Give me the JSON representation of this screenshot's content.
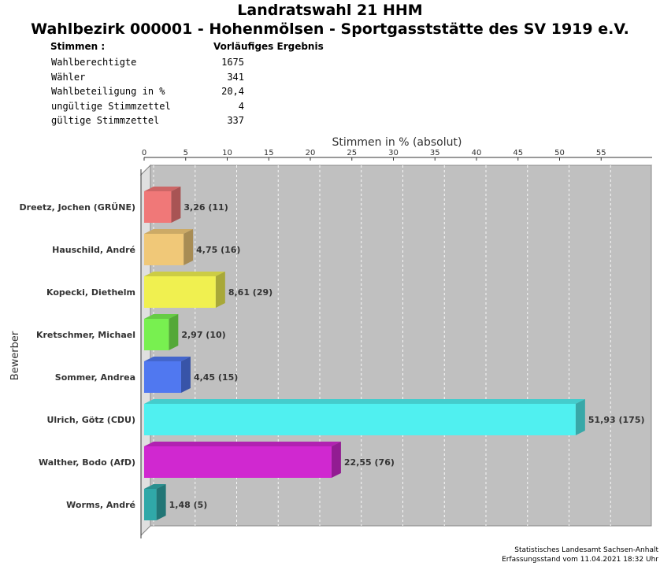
{
  "header": {
    "title": "Landratswahl 21 HHM",
    "subtitle": "Wahlbezirk 000001 - Hohenmölsen - Sportgasststätte des SV 1919 e.V."
  },
  "stats": {
    "head_left": "Stimmen  :",
    "head_right": "Vorläufiges Ergebnis",
    "rows": [
      {
        "label": "Wahlberechtigte",
        "value": "1675"
      },
      {
        "label": "Wähler",
        "value": "341"
      },
      {
        "label": "Wahlbeteiligung in %",
        "value": "20,4"
      },
      {
        "label": "ungültige Stimmzettel",
        "value": "4"
      },
      {
        "label": "gültige Stimmzettel",
        "value": "337"
      }
    ]
  },
  "footer": {
    "line1": "Statistisches Landesamt Sachsen-Anhalt",
    "line2": "Erfassungsstand vom 11.04.2021 18:32 Uhr"
  },
  "chart_data": {
    "type": "bar",
    "orientation": "horizontal",
    "xlabel": "Stimmen in % (absolut)",
    "ylabel": "Bewerber",
    "xlim": [
      0,
      60
    ],
    "ticks": [
      0,
      5,
      10,
      15,
      20,
      25,
      30,
      35,
      40,
      45,
      50,
      55
    ],
    "grid": true,
    "categories": [
      "Dreetz, Jochen (GRÜNE)",
      "Hauschild, André",
      "Kopecki, Diethelm",
      "Kretschmer, Michael",
      "Sommer, Andrea",
      "Ulrich, Götz (CDU)",
      "Walther, Bodo (AfD)",
      "Worms, André"
    ],
    "values": [
      3.26,
      4.75,
      8.61,
      2.97,
      4.45,
      51.93,
      22.55,
      1.48
    ],
    "labels": [
      "3,26 (11)",
      "4,75 (16)",
      "8,61 (29)",
      "2,97 (10)",
      "4,45 (15)",
      "51,93 (175)",
      "22,55 (76)",
      "1,48 (5)"
    ],
    "colors": [
      "#f07878",
      "#f0c878",
      "#f0f050",
      "#78f050",
      "#5078f0",
      "#50f0f0",
      "#d028d0",
      "#30a8a8"
    ]
  }
}
